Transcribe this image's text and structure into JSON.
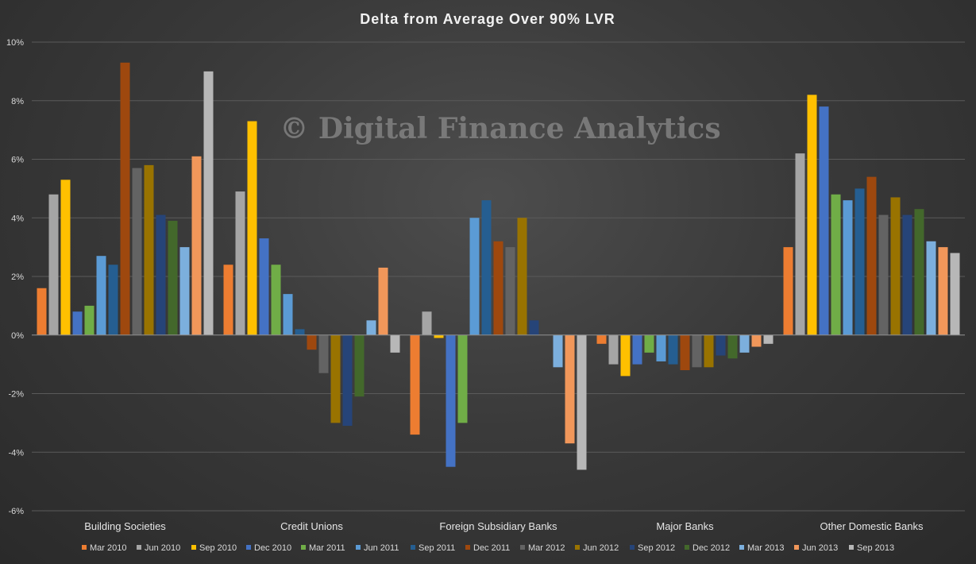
{
  "chart_data": {
    "type": "bar",
    "title": "Delta from Average Over 90% LVR",
    "watermark": "© Digital Finance Analytics",
    "categories": [
      "Building Societies",
      "Credit Unions",
      "Foreign Subsidiary Banks",
      "Major Banks",
      "Other Domestic Banks"
    ],
    "ylim": [
      -6,
      10
    ],
    "yticks": [
      -6,
      -4,
      -2,
      0,
      2,
      4,
      6,
      8,
      10
    ],
    "ytick_labels": [
      "-6%",
      "-4%",
      "-2%",
      "0%",
      "2%",
      "4%",
      "6%",
      "8%",
      "10%"
    ],
    "y_unit": "%",
    "grid": true,
    "legend_position": "bottom",
    "series": [
      {
        "name": "Mar 2010",
        "color": "#ED7D31",
        "values": [
          1.6,
          2.4,
          -3.4,
          -0.3,
          3.0
        ]
      },
      {
        "name": "Jun 2010",
        "color": "#A5A5A5",
        "values": [
          4.8,
          4.9,
          0.8,
          -1.0,
          6.2
        ]
      },
      {
        "name": "Sep 2010",
        "color": "#FFC000",
        "values": [
          5.3,
          7.3,
          -0.1,
          -1.4,
          8.2
        ]
      },
      {
        "name": "Dec 2010",
        "color": "#4472C4",
        "values": [
          0.8,
          3.3,
          -4.5,
          -1.0,
          7.8
        ]
      },
      {
        "name": "Mar 2011",
        "color": "#70AD47",
        "values": [
          1.0,
          2.4,
          -3.0,
          -0.6,
          4.8
        ]
      },
      {
        "name": "Jun 2011",
        "color": "#5B9BD5",
        "values": [
          2.7,
          1.4,
          4.0,
          -0.9,
          4.6
        ]
      },
      {
        "name": "Sep 2011",
        "color": "#255E91",
        "values": [
          2.4,
          0.2,
          4.6,
          -1.0,
          5.0
        ]
      },
      {
        "name": "Dec 2011",
        "color": "#9E480E",
        "values": [
          9.3,
          -0.5,
          3.2,
          -1.2,
          5.4
        ]
      },
      {
        "name": "Mar 2012",
        "color": "#636363",
        "values": [
          5.7,
          -1.3,
          3.0,
          -1.1,
          4.1
        ]
      },
      {
        "name": "Jun 2012",
        "color": "#997300",
        "values": [
          5.8,
          -3.0,
          4.0,
          -1.1,
          4.7
        ]
      },
      {
        "name": "Sep 2012",
        "color": "#264478",
        "values": [
          4.1,
          -3.1,
          0.5,
          -0.7,
          4.1
        ]
      },
      {
        "name": "Dec 2012",
        "color": "#43682B",
        "values": [
          3.9,
          -2.1,
          0.0,
          -0.8,
          4.3
        ]
      },
      {
        "name": "Mar 2013",
        "color": "#7CAFDD",
        "values": [
          3.0,
          0.5,
          -1.1,
          -0.6,
          3.2
        ]
      },
      {
        "name": "Jun 2013",
        "color": "#F1975A",
        "values": [
          6.1,
          2.3,
          -3.7,
          -0.4,
          3.0
        ]
      },
      {
        "name": "Sep 2013",
        "color": "#B7B7B7",
        "values": [
          9.0,
          -0.6,
          -4.6,
          -0.3,
          2.8
        ]
      }
    ]
  }
}
